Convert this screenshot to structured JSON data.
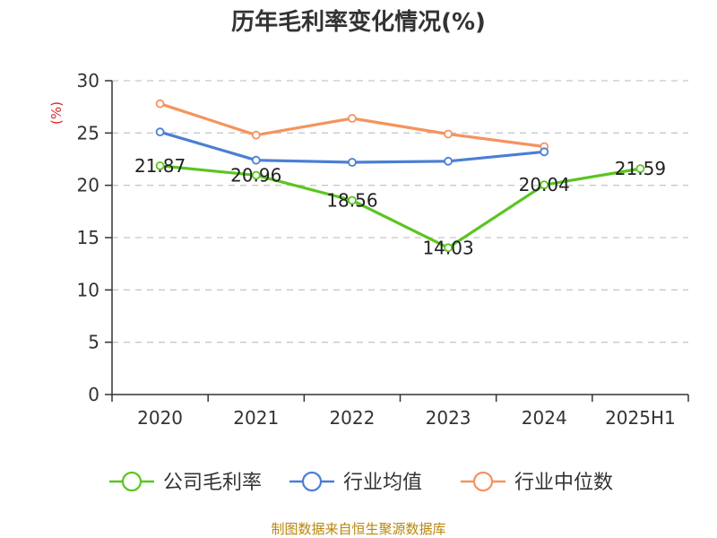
{
  "chart_data": {
    "type": "line",
    "title": "历年毛利率变化情况(%)",
    "ylabel": "(%)",
    "xlabel": "",
    "categories": [
      "2020",
      "2021",
      "2022",
      "2023",
      "2024",
      "2025H1"
    ],
    "ylim": [
      0,
      30
    ],
    "yticks": [
      "0",
      "5",
      "10",
      "15",
      "20",
      "25",
      "30"
    ],
    "grid": true,
    "legend_position": "bottom",
    "series": [
      {
        "name": "公司毛利率",
        "color": "#5bc520",
        "values": [
          21.87,
          20.96,
          18.56,
          14.03,
          20.04,
          21.59
        ],
        "labels": [
          "21.87",
          "20.96",
          "18.56",
          "14.03",
          "20.04",
          "21.59"
        ]
      },
      {
        "name": "行业均值",
        "color": "#4a7fd4",
        "values": [
          25.1,
          22.4,
          22.2,
          22.3,
          23.2,
          null
        ]
      },
      {
        "name": "行业中位数",
        "color": "#f5935e",
        "values": [
          27.8,
          24.8,
          26.4,
          24.9,
          23.7,
          null
        ]
      }
    ]
  },
  "source": "制图数据来自恒生聚源数据库"
}
